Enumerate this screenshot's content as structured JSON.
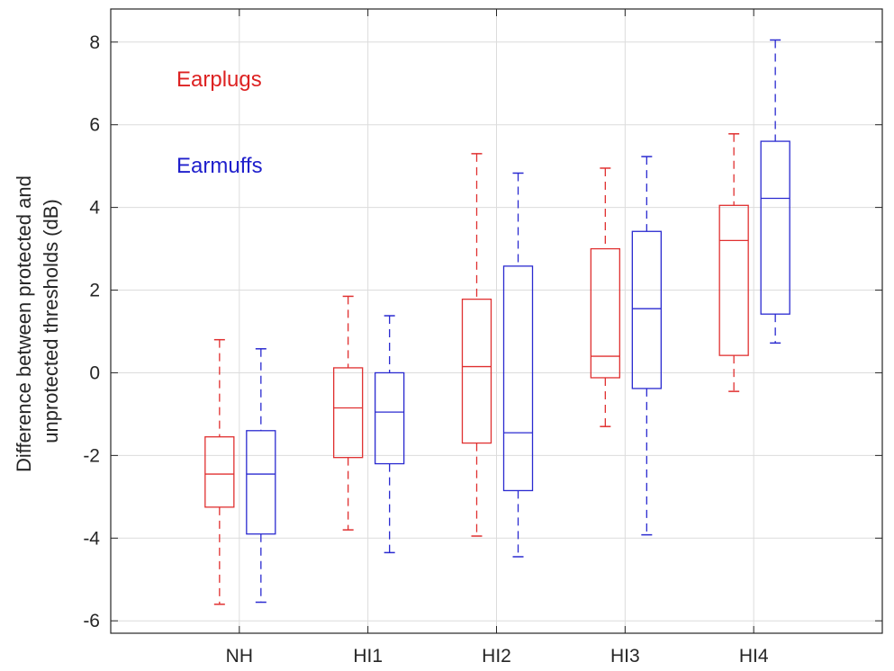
{
  "chart_data": {
    "type": "boxplot",
    "title": "",
    "xlabel": "",
    "ylabel_lines": [
      "Difference between protected and",
      "unprotected thresholds (dB)"
    ],
    "categories": [
      "NH",
      "HI1",
      "HI2",
      "HI3",
      "HI4"
    ],
    "ylim": [
      -6.3,
      8.8
    ],
    "yticks": [
      -6,
      -4,
      -2,
      0,
      2,
      4,
      6,
      8
    ],
    "ytick_labels": [
      "-6",
      "-4",
      "-2",
      "0",
      "2",
      "4",
      "6",
      "8"
    ],
    "grid": true,
    "annotations": [
      {
        "text": "Earplugs",
        "color": "#dd2222",
        "series": 0
      },
      {
        "text": "Earmuffs",
        "color": "#1f1fcc",
        "series": 1
      }
    ],
    "series": [
      {
        "color": "#e03030",
        "boxes": [
          {
            "min": -5.6,
            "q1": -3.25,
            "median": -2.45,
            "q3": -1.55,
            "max": 0.8
          },
          {
            "min": -3.8,
            "q1": -2.05,
            "median": -0.85,
            "q3": 0.12,
            "max": 1.85
          },
          {
            "min": -3.95,
            "q1": -1.7,
            "median": 0.15,
            "q3": 1.78,
            "max": 5.3
          },
          {
            "min": -1.3,
            "q1": -0.12,
            "median": 0.4,
            "q3": 3.0,
            "max": 4.95
          },
          {
            "min": -0.45,
            "q1": 0.42,
            "median": 3.2,
            "q3": 4.05,
            "max": 5.78
          }
        ]
      },
      {
        "color": "#2a2ad0",
        "boxes": [
          {
            "min": -5.55,
            "q1": -3.9,
            "median": -2.45,
            "q3": -1.4,
            "max": 0.58
          },
          {
            "min": -4.35,
            "q1": -2.2,
            "median": -0.95,
            "q3": 0.0,
            "max": 1.38
          },
          {
            "min": -4.45,
            "q1": -2.85,
            "median": -1.45,
            "q3": 2.58,
            "max": 4.83
          },
          {
            "min": -3.92,
            "q1": -0.38,
            "median": 1.55,
            "q3": 3.42,
            "max": 5.23
          },
          {
            "min": 0.72,
            "q1": 1.42,
            "median": 4.22,
            "q3": 5.6,
            "max": 8.05
          }
        ]
      }
    ]
  }
}
